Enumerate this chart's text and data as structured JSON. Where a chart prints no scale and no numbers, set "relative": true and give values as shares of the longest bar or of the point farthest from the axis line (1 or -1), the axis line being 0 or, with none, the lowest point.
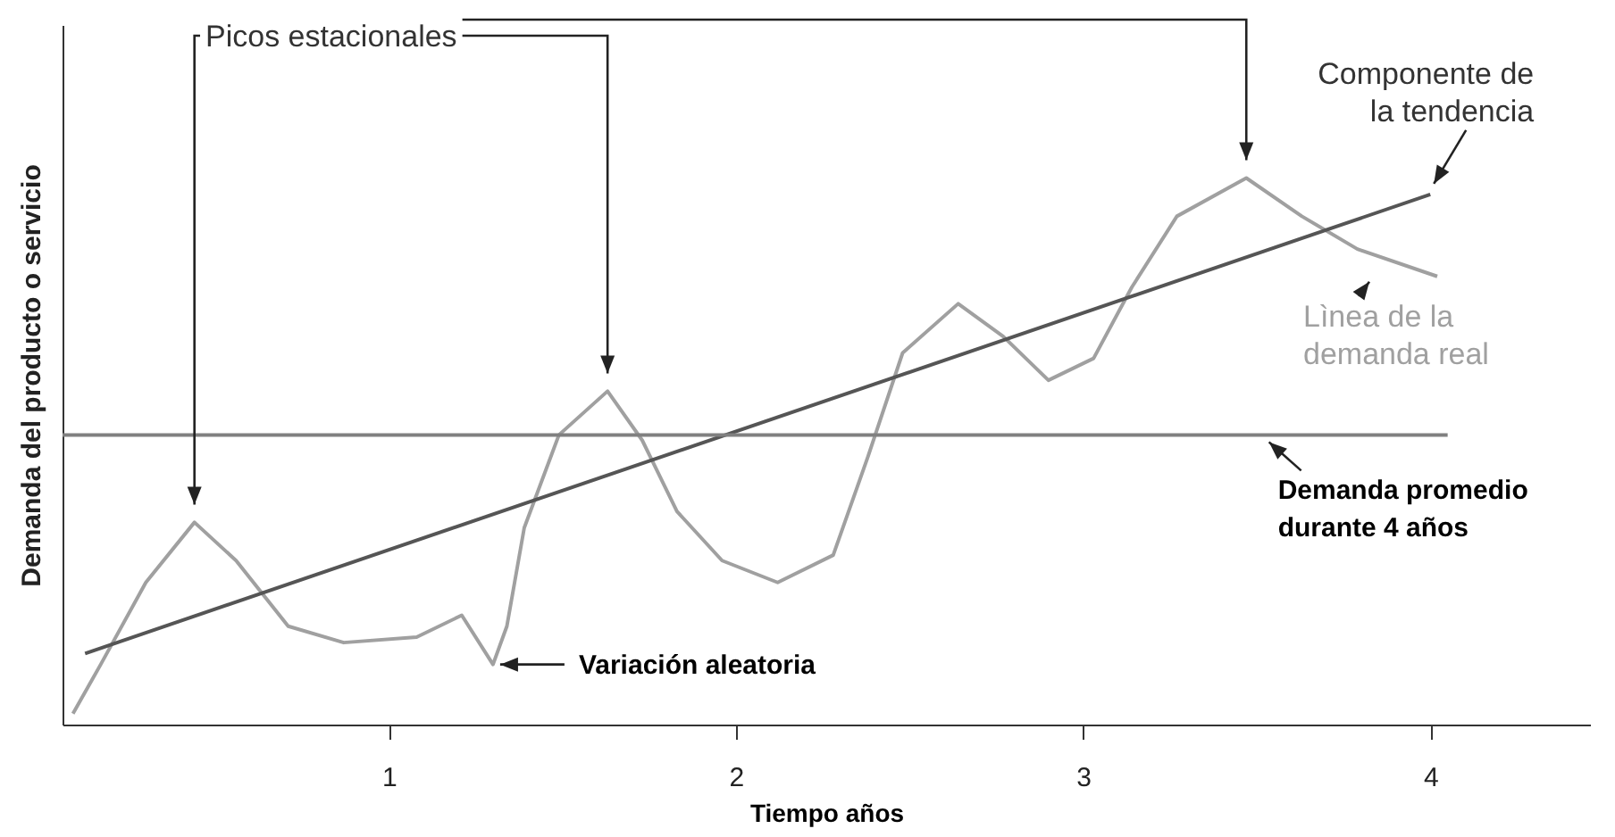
{
  "chart_data": {
    "type": "line",
    "relative": true,
    "xlabel": "Tiempo años",
    "ylabel": "Demanda del producto o servicio",
    "xlim": [
      0.06,
      4.46
    ],
    "xticks": [
      1,
      2,
      3,
      4
    ],
    "grid": false,
    "marker": "none",
    "line_style": "solid",
    "series": [
      {
        "name": "Lìnea de la demanda real",
        "color": "#a0a0a0",
        "x": [
          0.09,
          0.17,
          0.3,
          0.44,
          0.56,
          0.71,
          0.87,
          1.08,
          1.21,
          1.3,
          1.34,
          1.39,
          1.49,
          1.63,
          1.73,
          1.83,
          1.96,
          2.12,
          2.28,
          2.38,
          2.48,
          2.64,
          2.77,
          2.9,
          3.03,
          3.14,
          3.27,
          3.47,
          3.63,
          3.79,
          4.02
        ],
        "values": [
          0.02,
          0.11,
          0.26,
          0.37,
          0.3,
          0.18,
          0.15,
          0.16,
          0.2,
          0.11,
          0.18,
          0.36,
          0.53,
          0.61,
          0.52,
          0.39,
          0.3,
          0.26,
          0.31,
          0.49,
          0.68,
          0.77,
          0.71,
          0.63,
          0.67,
          0.8,
          0.93,
          1,
          0.93,
          0.87,
          0.82
        ]
      },
      {
        "name": "Componente de la tendencia",
        "color": "#555555",
        "x": [
          0.125,
          4
        ],
        "values": [
          0.13,
          0.97
        ]
      },
      {
        "name": "Demanda promedio durante 4 años",
        "color": "#808080",
        "x": [
          0.06,
          4.05
        ],
        "values": [
          0.53,
          0.53
        ]
      }
    ],
    "annotations": [
      "Picos estacionales",
      {
        "text": "Variación aleatoria",
        "x": 1.3,
        "y": 0.11
      }
    ]
  }
}
